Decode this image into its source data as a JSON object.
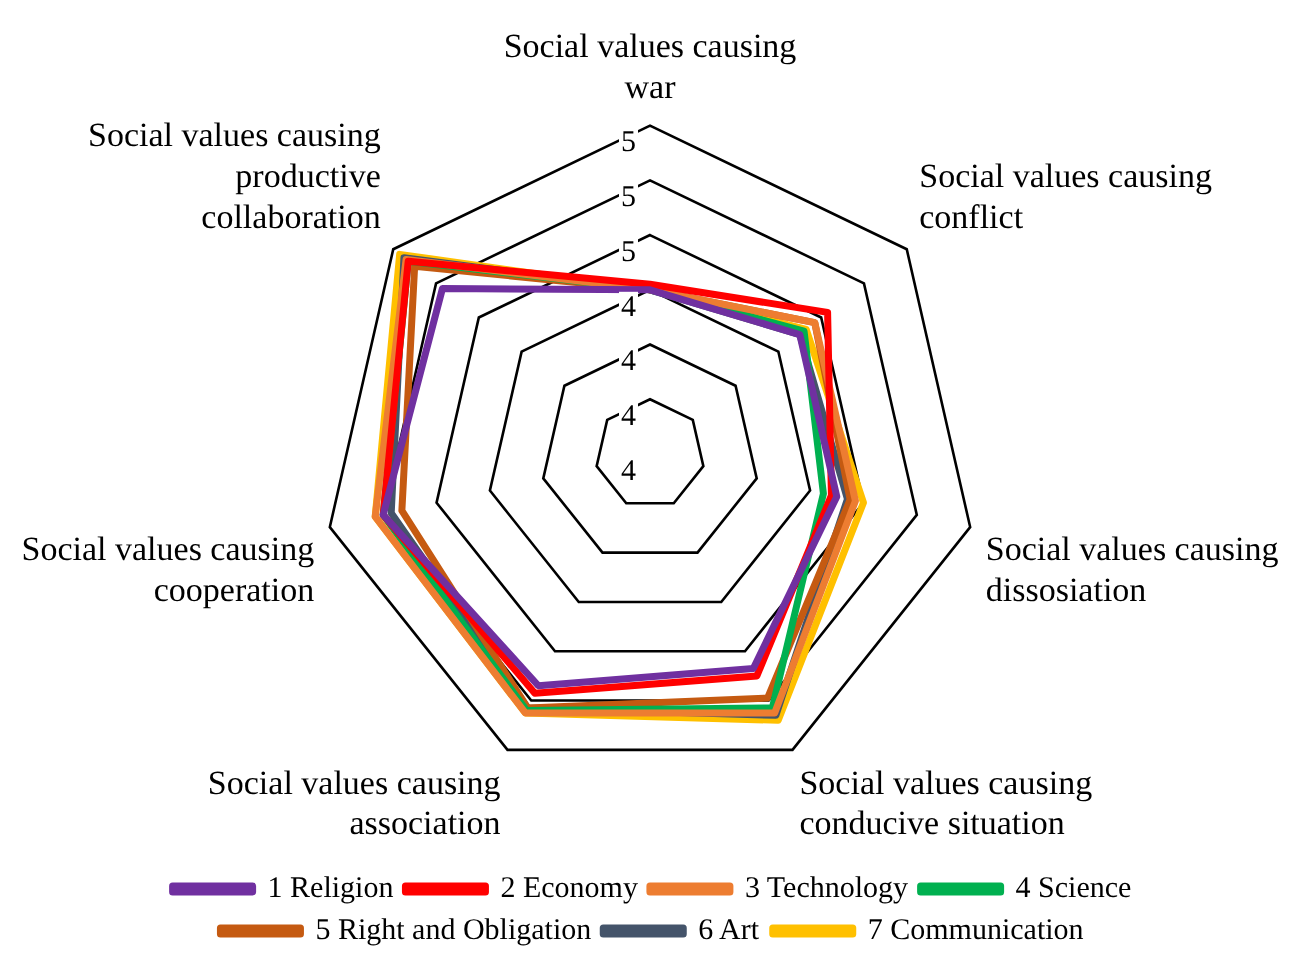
{
  "chart_data": {
    "type": "radar",
    "categories": [
      "Social values causing war",
      "Social values causing conflict",
      "Social values causing dissosiation",
      "Social values causing conducive situation",
      "Social values causing association",
      "Social values causing cooperation",
      "Social values causing productive collaboration"
    ],
    "series": [
      {
        "name": "1 Religion",
        "color": "#7030a0",
        "values": [
          4.4,
          4.5,
          4.5,
          4.67,
          4.74,
          4.8,
          4.77
        ]
      },
      {
        "name": "2 Economy",
        "color": "#ff0000",
        "values": [
          4.42,
          4.63,
          4.48,
          4.7,
          4.77,
          4.8,
          4.93
        ]
      },
      {
        "name": "3 Technology",
        "color": "#ed7d31",
        "values": [
          4.4,
          4.57,
          4.57,
          4.85,
          4.85,
          4.83,
          4.94
        ]
      },
      {
        "name": "4 Science",
        "color": "#00b050",
        "values": [
          4.4,
          4.52,
          4.45,
          4.83,
          4.84,
          4.8,
          4.93
        ]
      },
      {
        "name": "5 Right and Obligation",
        "color": "#c55a11",
        "values": [
          4.4,
          4.57,
          4.55,
          4.79,
          4.83,
          4.73,
          4.9
        ]
      },
      {
        "name": "6 Art",
        "color": "#44546a",
        "values": [
          4.4,
          4.5,
          4.54,
          4.86,
          4.83,
          4.77,
          4.95
        ]
      },
      {
        "name": "7 Communication",
        "color": "#ffc000",
        "values": [
          4.4,
          4.53,
          4.6,
          4.88,
          4.85,
          4.83,
          4.97
        ]
      }
    ],
    "ylim": [
      3.8,
      5.0
    ],
    "yticks": [
      {
        "value": 3.8,
        "label": "4"
      },
      {
        "value": 4.0,
        "label": "4"
      },
      {
        "value": 4.2,
        "label": "4"
      },
      {
        "value": 4.4,
        "label": "4"
      },
      {
        "value": 4.6,
        "label": "5"
      },
      {
        "value": 4.8,
        "label": "5"
      },
      {
        "value": 5.0,
        "label": "5"
      }
    ],
    "grid": true,
    "legend": "bottom",
    "marker": "none",
    "line_style": "solid"
  }
}
